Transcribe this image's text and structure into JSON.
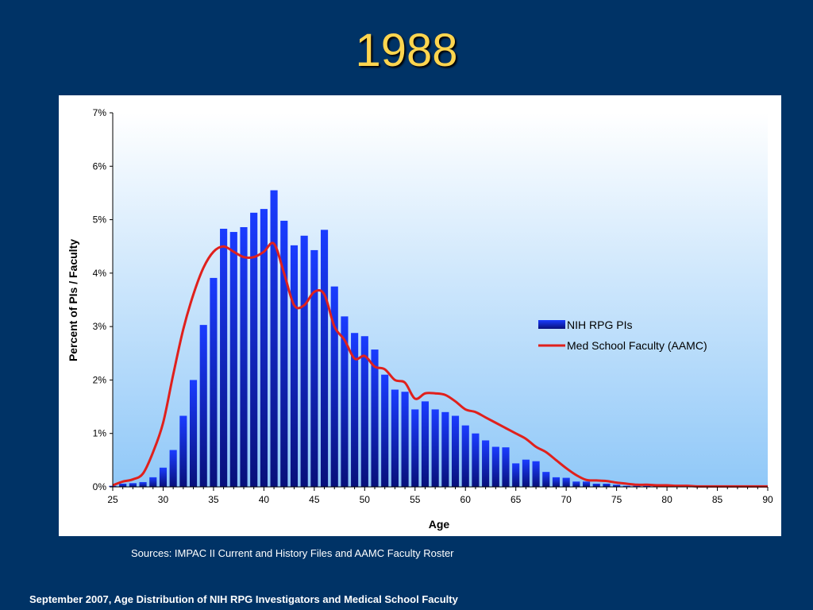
{
  "slide": {
    "title": "1988",
    "sources": "Sources:  IMPAC II Current and History Files and AAMC Faculty Roster",
    "footer": "September 2007, Age Distribution of NIH RPG Investigators and Medical School Faculty"
  },
  "colors": {
    "background": "#003366",
    "title": "#FFD54F",
    "bar": "#0A1FE0",
    "line": "#E0201C"
  },
  "chart_data": {
    "type": "bar",
    "xlabel": "Age",
    "ylabel": "Percent of PIs / Faculty",
    "x": [
      25,
      26,
      27,
      28,
      29,
      30,
      31,
      32,
      33,
      34,
      35,
      36,
      37,
      38,
      39,
      40,
      41,
      42,
      43,
      44,
      45,
      46,
      47,
      48,
      49,
      50,
      51,
      52,
      53,
      54,
      55,
      56,
      57,
      58,
      59,
      60,
      61,
      62,
      63,
      64,
      65,
      66,
      67,
      68,
      69,
      70,
      71,
      72,
      73,
      74,
      75,
      76,
      77,
      78,
      79,
      80,
      81,
      82,
      83,
      84,
      85,
      86,
      87,
      88,
      89,
      90
    ],
    "xlim": [
      25,
      90
    ],
    "xticks": [
      "25",
      "30",
      "35",
      "40",
      "45",
      "50",
      "55",
      "60",
      "65",
      "70",
      "75",
      "80",
      "85",
      "90"
    ],
    "ylim": [
      0,
      7
    ],
    "yticks": [
      "0%",
      "1%",
      "2%",
      "3%",
      "4%",
      "5%",
      "6%",
      "7%"
    ],
    "legend_position": "right",
    "series": [
      {
        "name": "NIH RPG PIs",
        "type": "bar",
        "values": [
          0.02,
          0.06,
          0.07,
          0.09,
          0.18,
          0.36,
          0.69,
          1.33,
          2.0,
          3.03,
          3.91,
          4.83,
          4.77,
          4.86,
          5.13,
          5.2,
          5.55,
          4.98,
          4.52,
          4.7,
          4.43,
          4.81,
          3.75,
          3.19,
          2.88,
          2.82,
          2.57,
          2.1,
          1.82,
          1.78,
          1.45,
          1.6,
          1.45,
          1.4,
          1.33,
          1.15,
          1.0,
          0.87,
          0.75,
          0.74,
          0.44,
          0.51,
          0.48,
          0.28,
          0.18,
          0.17,
          0.1,
          0.1,
          0.06,
          0.06,
          0.04,
          0.02,
          0.02,
          0.02,
          0.02,
          0.01,
          0.01,
          0.01,
          0.0,
          0.0,
          0.0,
          0.0,
          0.0,
          0.0,
          0.0,
          0.0
        ]
      },
      {
        "name": "Med School Faculty (AAMC)",
        "type": "line",
        "values": [
          0.03,
          0.1,
          0.14,
          0.25,
          0.65,
          1.2,
          2.1,
          2.95,
          3.6,
          4.1,
          4.4,
          4.5,
          4.4,
          4.3,
          4.3,
          4.4,
          4.55,
          4.0,
          3.4,
          3.4,
          3.65,
          3.6,
          3.0,
          2.75,
          2.4,
          2.45,
          2.25,
          2.2,
          2.0,
          1.95,
          1.65,
          1.75,
          1.75,
          1.72,
          1.6,
          1.45,
          1.4,
          1.3,
          1.2,
          1.1,
          1.0,
          0.9,
          0.75,
          0.65,
          0.5,
          0.35,
          0.22,
          0.13,
          0.12,
          0.11,
          0.08,
          0.06,
          0.04,
          0.04,
          0.03,
          0.03,
          0.02,
          0.02,
          0.01,
          0.01,
          0.01,
          0.01,
          0.01,
          0.01,
          0.01,
          0.01
        ]
      }
    ]
  }
}
